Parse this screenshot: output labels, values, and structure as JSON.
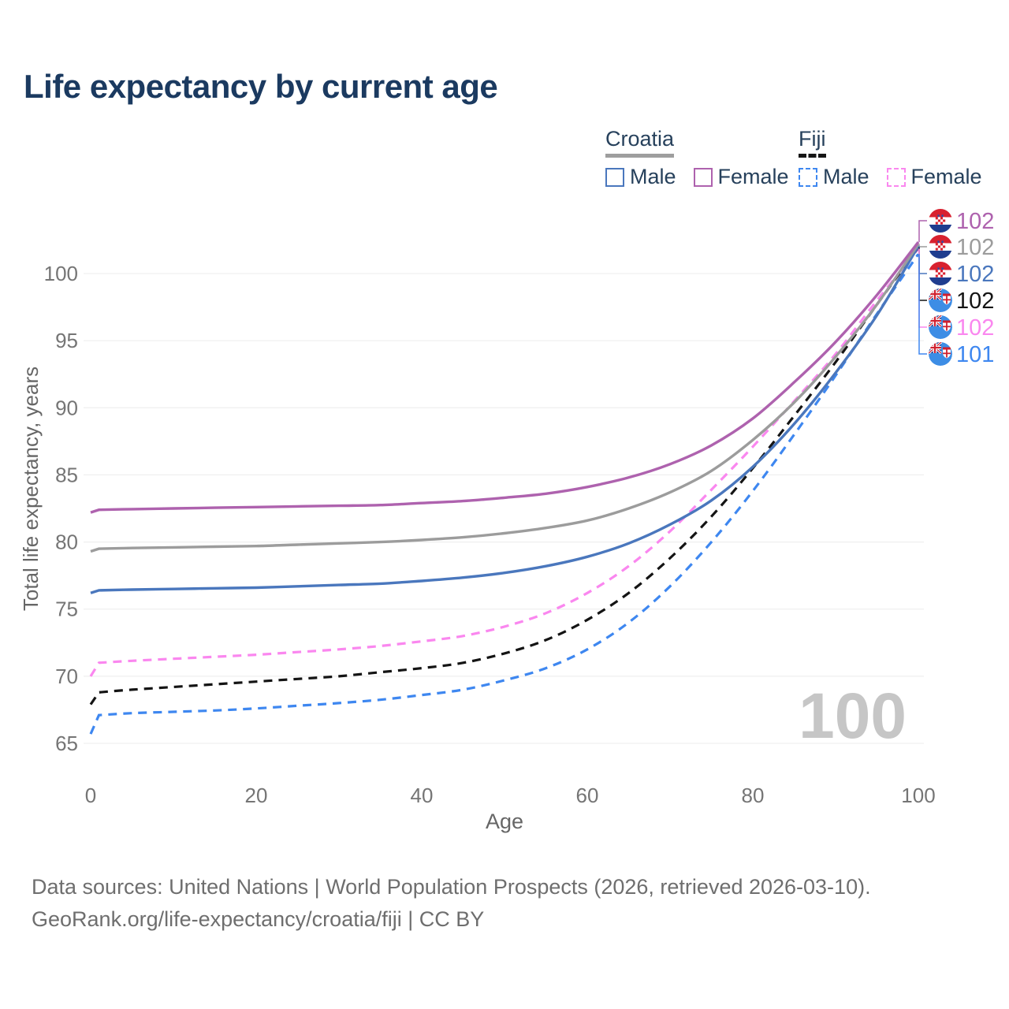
{
  "legend": {
    "groups": [
      {
        "country": "Croatia",
        "items": [
          "Male",
          "Female"
        ]
      },
      {
        "country": "Fiji",
        "items": [
          "Male",
          "Female"
        ]
      }
    ]
  },
  "footer": {
    "line1": "Data sources: United Nations | World Population Prospects (2026, retrieved 2026-03-10).",
    "line2": "GeoRank.org/life-expectancy/croatia/fiji | CC BY"
  },
  "chart_data": {
    "type": "line",
    "title": "Life expectancy by current age",
    "x_axis": {
      "label": "Age",
      "ticks": [
        0,
        20,
        40,
        60,
        80,
        100
      ],
      "range": [
        0,
        100
      ]
    },
    "y_axis": {
      "label": "Total life expectancy, years",
      "ticks": [
        65,
        70,
        75,
        80,
        85,
        90,
        95,
        100
      ],
      "range": [
        63,
        104
      ]
    },
    "grid": "horizontal",
    "age_cursor": "100",
    "ages": [
      0,
      1,
      5,
      10,
      15,
      20,
      25,
      30,
      35,
      40,
      45,
      50,
      55,
      60,
      65,
      70,
      75,
      80,
      85,
      90,
      95,
      100
    ],
    "series": [
      {
        "id": "croatia_female",
        "country": "Croatia",
        "country_code": "hr",
        "sex": "Female",
        "style": "solid",
        "color": "#ae62ae",
        "end_label": "102",
        "values": [
          82.2,
          82.4,
          82.45,
          82.5,
          82.55,
          82.6,
          82.65,
          82.7,
          82.75,
          82.9,
          83.05,
          83.3,
          83.6,
          84.1,
          84.8,
          85.8,
          87.2,
          89.2,
          91.9,
          94.9,
          98.4,
          102.35
        ]
      },
      {
        "id": "croatia_both",
        "country": "Croatia",
        "country_code": "hr",
        "sex": "Both",
        "style": "solid",
        "color": "#9c9c9c",
        "end_label": "102",
        "values": [
          79.3,
          79.5,
          79.55,
          79.6,
          79.65,
          79.7,
          79.8,
          79.9,
          80.0,
          80.15,
          80.35,
          80.65,
          81.05,
          81.6,
          82.5,
          83.7,
          85.3,
          87.6,
          90.4,
          93.8,
          97.7,
          102.2
        ]
      },
      {
        "id": "croatia_male",
        "country": "Croatia",
        "country_code": "hr",
        "sex": "Male",
        "style": "solid",
        "color": "#4a77bd",
        "end_label": "102",
        "values": [
          76.2,
          76.4,
          76.45,
          76.5,
          76.55,
          76.6,
          76.7,
          76.8,
          76.9,
          77.1,
          77.35,
          77.7,
          78.2,
          78.9,
          79.9,
          81.3,
          83.1,
          85.6,
          88.8,
          92.6,
          96.9,
          102.05
        ]
      },
      {
        "id": "fiji_both",
        "country": "Fiji",
        "country_code": "fj",
        "sex": "Both",
        "style": "dashed",
        "color": "#141414",
        "end_label": "102",
        "values": [
          67.9,
          68.8,
          69.0,
          69.2,
          69.4,
          69.6,
          69.8,
          70.0,
          70.3,
          70.6,
          71.0,
          71.7,
          72.7,
          74.2,
          76.2,
          78.8,
          81.9,
          85.5,
          89.4,
          93.4,
          97.7,
          101.95
        ]
      },
      {
        "id": "fiji_female",
        "country": "Fiji",
        "country_code": "fj",
        "sex": "Female",
        "style": "dashed",
        "color": "#fa87ef",
        "end_label": "102",
        "values": [
          70.0,
          71.0,
          71.15,
          71.3,
          71.45,
          71.6,
          71.8,
          72.0,
          72.25,
          72.6,
          73.0,
          73.7,
          74.7,
          76.2,
          78.2,
          80.8,
          83.9,
          87.1,
          90.5,
          94.0,
          98.0,
          101.85
        ]
      },
      {
        "id": "fiji_male",
        "country": "Fiji",
        "country_code": "fj",
        "sex": "Male",
        "style": "dashed",
        "color": "#3e87f0",
        "end_label": "101",
        "values": [
          65.7,
          67.1,
          67.25,
          67.35,
          67.45,
          67.6,
          67.8,
          68.0,
          68.25,
          68.6,
          69.0,
          69.7,
          70.6,
          72.0,
          74.0,
          76.7,
          80.0,
          83.8,
          88.0,
          92.4,
          97.0,
          101.45
        ]
      }
    ]
  }
}
